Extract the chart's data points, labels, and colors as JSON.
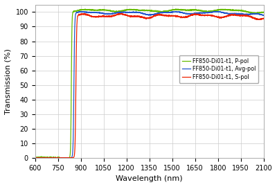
{
  "title": "",
  "xlabel": "Wavelength (nm)",
  "ylabel": "Transmission (%)",
  "xlim": [
    600,
    2100
  ],
  "ylim": [
    0,
    105
  ],
  "yticks": [
    0,
    10,
    20,
    30,
    40,
    50,
    60,
    70,
    80,
    90,
    100
  ],
  "xticks": [
    600,
    750,
    900,
    1050,
    1200,
    1350,
    1500,
    1650,
    1800,
    1950,
    2100
  ],
  "colors": {
    "avg": "#2255cc",
    "ppol": "#66bb00",
    "spol": "#ee2200"
  },
  "legend_labels": [
    "FF850-Di01-t1, Avg-pol",
    "FF850-Di01-t1, P-pol",
    "FF850-Di01-t1, S-pol"
  ],
  "bg_color": "#ffffff",
  "grid_color": "#cccccc",
  "edge_avg": 855,
  "edge_p": 838,
  "edge_s": 868,
  "base_avg": 99.5,
  "base_p": 101.2,
  "base_s": 97.5
}
